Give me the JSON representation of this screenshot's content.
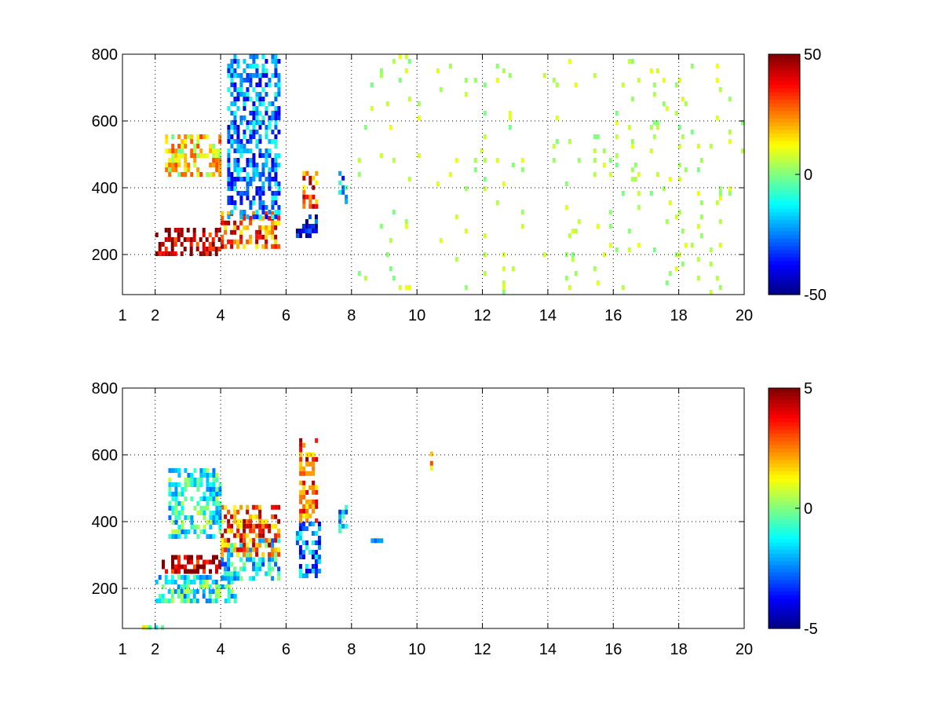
{
  "chart_data": [
    {
      "type": "heatmap",
      "panel": "top",
      "title": "",
      "xlabel": "",
      "ylabel": "",
      "x_range": [
        1,
        20
      ],
      "y_range": [
        80,
        800
      ],
      "x_ticks": [
        1,
        2,
        4,
        6,
        8,
        10,
        12,
        14,
        16,
        18,
        20
      ],
      "y_ticks": [
        200,
        400,
        600,
        800
      ],
      "grid": true,
      "colormap": "jet",
      "clim": [
        -50,
        50
      ],
      "colorbar_ticks": [
        -50,
        0,
        50
      ],
      "colorbar_position": "right",
      "features": [
        {
          "region": "x 2-4, y 200-280",
          "value": 45
        },
        {
          "region": "x 4-5.8, y 220-330",
          "value": 30
        },
        {
          "region": "x 2.3-4, y 440-560",
          "value": 15
        },
        {
          "region": "x 4.2-5.8, y 300-800",
          "value": -25
        },
        {
          "region": "x 6.3-7, y 250-320",
          "value": -40
        },
        {
          "region": "x 6.5-7, y 330-450",
          "value": 30
        },
        {
          "region": "x 7.6-7.9, y 350-450",
          "value": -20
        },
        {
          "region": "x 8-20, y 80-800 (scattered stripes)",
          "value": 5
        }
      ]
    },
    {
      "type": "heatmap",
      "panel": "bottom",
      "title": "",
      "xlabel": "",
      "ylabel": "",
      "x_range": [
        1,
        20
      ],
      "y_range": [
        80,
        800
      ],
      "x_ticks": [
        1,
        2,
        4,
        6,
        8,
        10,
        12,
        14,
        16,
        18,
        20
      ],
      "y_ticks": [
        200,
        400,
        600,
        800
      ],
      "grid": true,
      "colormap": "jet",
      "clim": [
        -5,
        5
      ],
      "colorbar_ticks": [
        -5,
        0,
        5
      ],
      "colorbar_position": "right",
      "features": [
        {
          "region": "x 2.2-4, y 240-300",
          "value": 4.5
        },
        {
          "region": "x 2-4.5, y 150-240",
          "value": -1
        },
        {
          "region": "x 4-5.8, y 220-350",
          "value": -1.5
        },
        {
          "region": "x 4-5.8, y 300-450",
          "value": 3
        },
        {
          "region": "x 2.4-4, y 350-560",
          "value": -1
        },
        {
          "region": "x 6.3-7.1, y 230-400",
          "value": -2.5
        },
        {
          "region": "x 6.4-7, y 400-650",
          "value": 3
        },
        {
          "region": "x 7.6-7.9, y 360-450",
          "value": -2
        },
        {
          "region": "x 8.3-9, y 330-350",
          "value": -2
        },
        {
          "region": "x 10.4-10.5, y 560-610",
          "value": 2.5
        },
        {
          "region": "x 1.6-2.3, y 80-90",
          "value": 0.5
        }
      ]
    }
  ]
}
